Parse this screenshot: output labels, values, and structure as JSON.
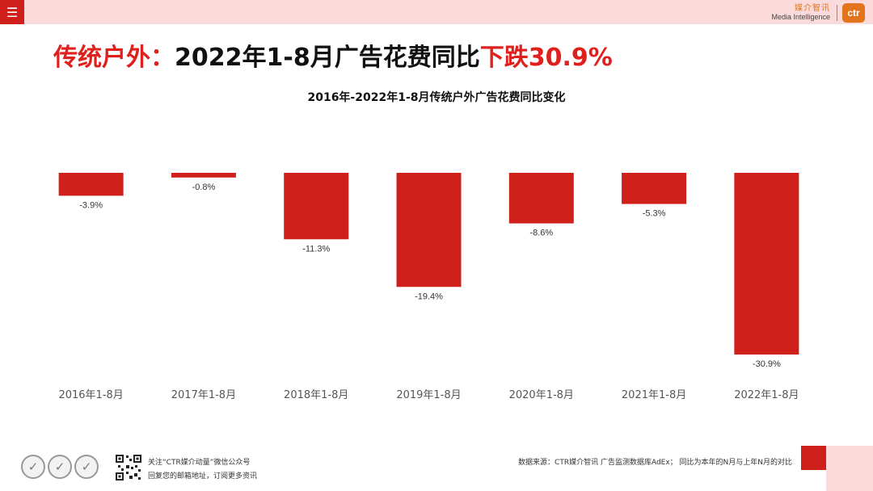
{
  "header": {
    "menu_icon": "☰",
    "brand_cn": "媒介智讯",
    "brand_en": "Media Intelligence",
    "brand_logo": "ctr"
  },
  "headline": {
    "prefix": "传统户外：",
    "middle": "2022年1-8月广告花费同比",
    "emphasis": "下跌30.9%"
  },
  "chart_data": {
    "type": "bar",
    "title": "2016年-2022年1-8月传统户外广告花费同比变化",
    "categories": [
      "2016年1-8月",
      "2017年1-8月",
      "2018年1-8月",
      "2019年1-8月",
      "2020年1-8月",
      "2021年1-8月",
      "2022年1-8月"
    ],
    "values": [
      -3.9,
      -0.8,
      -11.3,
      -19.4,
      -8.6,
      -5.3,
      -30.9
    ],
    "data_labels": [
      "-3.9%",
      "-0.8%",
      "-11.3%",
      "-19.4%",
      "-8.6%",
      "-5.3%",
      "-30.9%"
    ],
    "unit": "%",
    "ylim": [
      -30.9,
      0
    ],
    "bar_color": "#d0201c",
    "xlabel": "",
    "ylabel": "",
    "grid": false,
    "legend": "none"
  },
  "footer": {
    "follow_line1": "关注“CTR媒介动量”微信公众号",
    "follow_line2": "回复您的邮箱地址，订阅更多资讯",
    "source": "数据来源：CTR媒介智讯 广告监测数据库AdEx；   同比为本年的N月与上年N月的对比",
    "seal_icon": "✓"
  },
  "colors": {
    "accent_red": "#e0201c",
    "brand_orange": "#e2751c",
    "topbar_pink": "#fadada"
  }
}
